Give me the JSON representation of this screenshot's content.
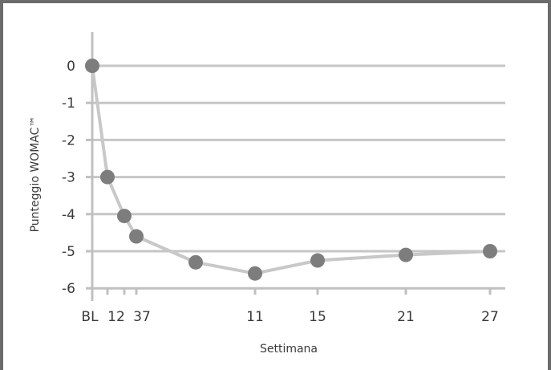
{
  "chart_data": {
    "type": "line",
    "title": "",
    "xlabel": "Settimana",
    "ylabel": "Punteggio WOMAC™",
    "ylim": [
      -6,
      0
    ],
    "yticks": [
      0,
      -1,
      -2,
      -3,
      -4,
      -5,
      -6
    ],
    "grid": true,
    "x_tick_labels": [
      "BL",
      "12",
      "37",
      "11",
      "15",
      "21",
      "27"
    ],
    "series": [
      {
        "x": [
          0,
          1,
          2,
          3,
          7,
          11,
          15,
          21,
          27
        ],
        "values": [
          0,
          -3.0,
          -4.05,
          -4.6,
          -5.3,
          -5.6,
          -5.25,
          -5.1,
          -5.0
        ]
      }
    ],
    "colors": {
      "line": "#c8c8c8",
      "marker": "#7d7d7d",
      "grid": "#c6c6c6",
      "axis": "#c0c0c0",
      "frame": "#6b6b6b"
    }
  }
}
